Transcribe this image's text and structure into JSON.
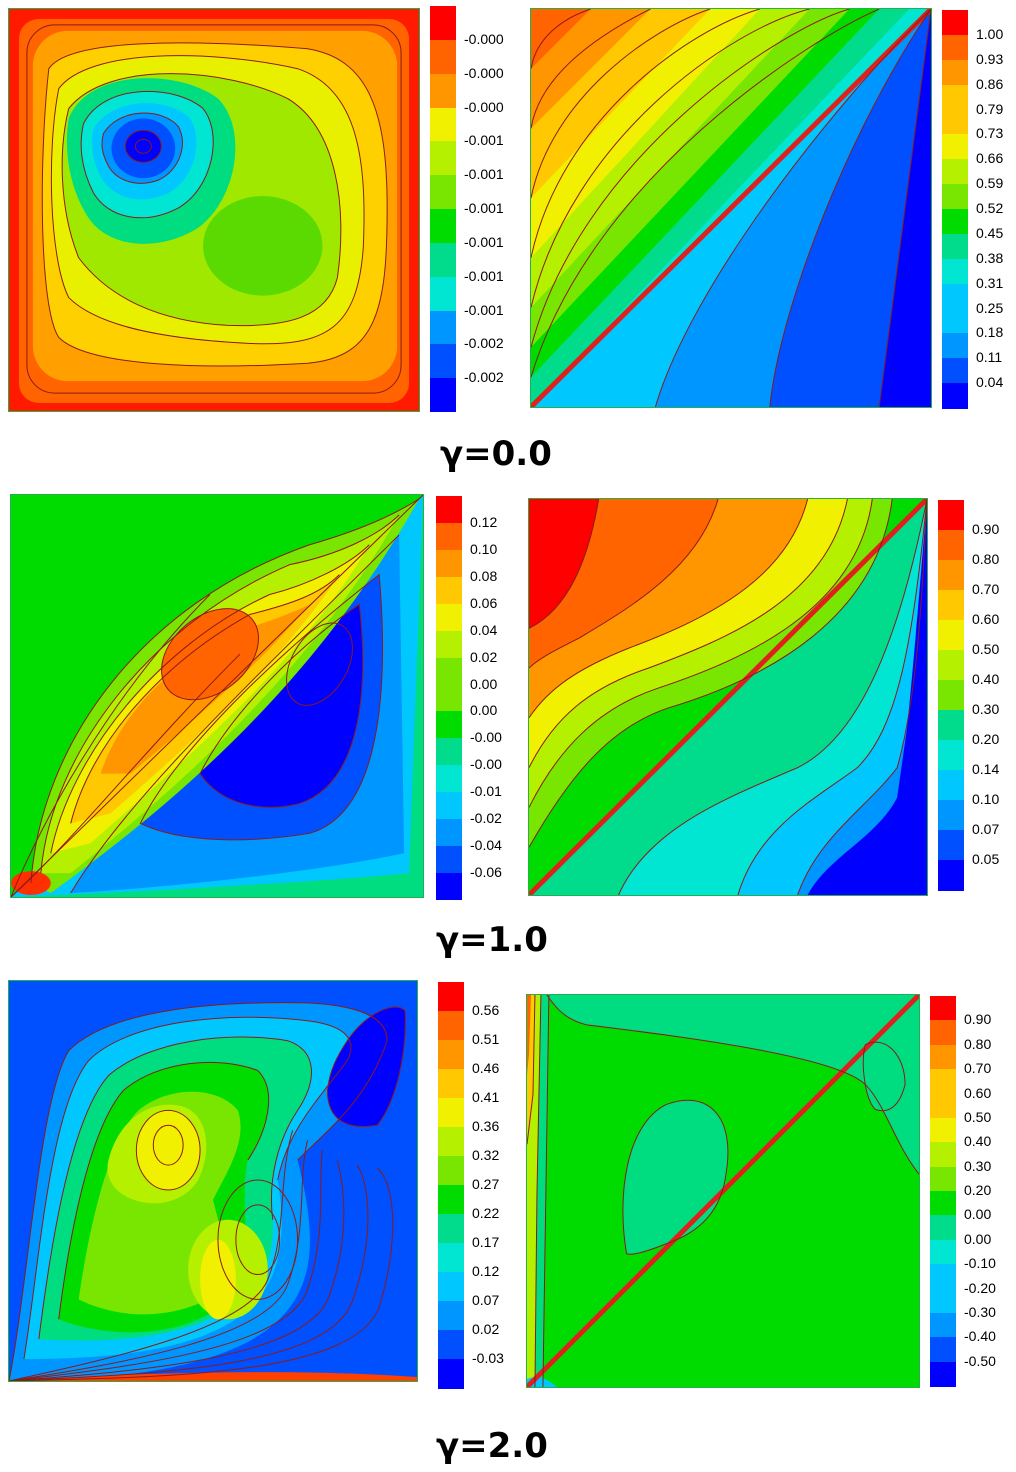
{
  "rows": [
    {
      "caption": "γ=0.0",
      "left_legend": [
        "-0.000",
        "-0.000",
        "-0.000",
        "-0.001",
        "-0.001",
        "-0.001",
        "-0.001",
        "-0.001",
        "-0.001",
        "-0.002",
        "-0.002"
      ],
      "right_legend": [
        "1.00",
        "0.93",
        "0.86",
        "0.79",
        "0.73",
        "0.66",
        "0.59",
        "0.52",
        "0.45",
        "0.38",
        "0.31",
        "0.25",
        "0.18",
        "0.11",
        "0.04"
      ]
    },
    {
      "caption": "γ=1.0",
      "left_legend": [
        "0.12",
        "0.10",
        "0.08",
        "0.06",
        "0.04",
        "0.02",
        "0.00",
        "0.00",
        "-0.00",
        "-0.00",
        "-0.01",
        "-0.02",
        "-0.04",
        "-0.06"
      ],
      "right_legend": [
        "0.90",
        "0.80",
        "0.70",
        "0.60",
        "0.50",
        "0.40",
        "0.30",
        "0.20",
        "0.14",
        "0.10",
        "0.07",
        "0.05"
      ]
    },
    {
      "caption": "γ=2.0",
      "left_legend": [
        "0.56",
        "0.51",
        "0.46",
        "0.41",
        "0.36",
        "0.32",
        "0.27",
        "0.22",
        "0.17",
        "0.12",
        "0.07",
        "0.02",
        "-0.03"
      ],
      "right_legend": [
        "0.90",
        "0.80",
        "0.70",
        "0.60",
        "0.50",
        "0.40",
        "0.30",
        "0.20",
        "0.00",
        "0.00",
        "-0.10",
        "-0.20",
        "-0.30",
        "-0.40",
        "-0.50"
      ]
    }
  ],
  "colormap": [
    "#0000ff",
    "#0050ff",
    "#0096ff",
    "#00c8ff",
    "#00e6d2",
    "#00dc8c",
    "#00dc00",
    "#78e600",
    "#b4f000",
    "#f0f000",
    "#ffc800",
    "#ff9600",
    "#ff6400",
    "#ff0000"
  ],
  "colors": {
    "plot_border": "#22b14c",
    "contour_line": "#8b1a1a",
    "diagonal_line": "#e0201c"
  }
}
